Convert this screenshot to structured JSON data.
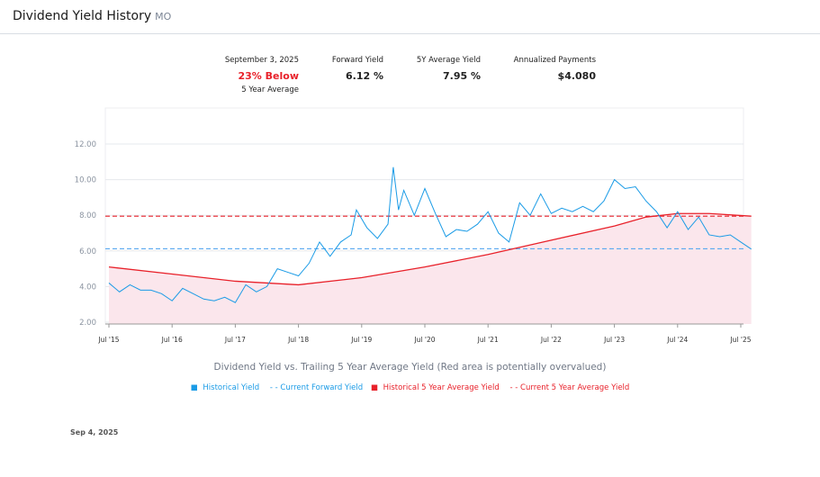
{
  "header": {
    "title": "Dividend Yield History",
    "ticker": "MO"
  },
  "stats": {
    "date": "September 3, 2025",
    "relative": "23% Below",
    "relative_sub": "5 Year Average",
    "forward_label": "Forward Yield",
    "forward_value": "6.12 %",
    "avg_label": "5Y Average Yield",
    "avg_value": "7.95 %",
    "payments_label": "Annualized Payments",
    "payments_value": "$4.080"
  },
  "footer_date": "Sep 4, 2025",
  "chart_data": {
    "type": "line",
    "title": "Dividend Yield vs. Trailing 5 Year Average Yield (Red area is potentially overvalued)",
    "ylim": [
      2,
      14
    ],
    "y_ticks": [
      "2.00",
      "4.00",
      "6.00",
      "8.00",
      "10.00",
      "12.00"
    ],
    "x_ticks": [
      "Jul '15",
      "Jul '16",
      "Jul '17",
      "Jul '18",
      "Jul '19",
      "Jul '20",
      "Jul '21",
      "Jul '22",
      "Jul '23",
      "Jul '24",
      "Jul '25"
    ],
    "grid": true,
    "legend_placement": "bottom",
    "colors": {
      "historical": "#1a9be6",
      "forward": "#5aa9f0",
      "avg": "#e8212a",
      "fill": "#fbe6ec"
    },
    "current_forward_yield": 6.12,
    "current_5y_average_yield": 7.95,
    "legend": [
      "Historical Yield",
      "- - Current Forward Yield",
      "Historical 5 Year Average Yield",
      "- - Current 5 Year Average Yield"
    ],
    "historical_yield": [
      [
        "2015-07",
        4.2
      ],
      [
        "2015-09",
        3.7
      ],
      [
        "2015-11",
        4.1
      ],
      [
        "2016-01",
        3.8
      ],
      [
        "2016-03",
        3.8
      ],
      [
        "2016-05",
        3.6
      ],
      [
        "2016-07",
        3.2
      ],
      [
        "2016-09",
        3.9
      ],
      [
        "2016-11",
        3.6
      ],
      [
        "2017-01",
        3.3
      ],
      [
        "2017-03",
        3.2
      ],
      [
        "2017-05",
        3.4
      ],
      [
        "2017-07",
        3.1
      ],
      [
        "2017-09",
        4.1
      ],
      [
        "2017-11",
        3.7
      ],
      [
        "2018-01",
        4.0
      ],
      [
        "2018-03",
        5.0
      ],
      [
        "2018-05",
        4.8
      ],
      [
        "2018-07",
        4.6
      ],
      [
        "2018-09",
        5.3
      ],
      [
        "2018-11",
        6.5
      ],
      [
        "2019-01",
        5.7
      ],
      [
        "2019-03",
        6.5
      ],
      [
        "2019-05",
        6.9
      ],
      [
        "2019-06",
        8.3
      ],
      [
        "2019-08",
        7.3
      ],
      [
        "2019-10",
        6.7
      ],
      [
        "2019-12",
        7.5
      ],
      [
        "2020-01",
        10.7
      ],
      [
        "2020-02",
        8.3
      ],
      [
        "2020-03",
        9.4
      ],
      [
        "2020-05",
        8.0
      ],
      [
        "2020-07",
        9.5
      ],
      [
        "2020-09",
        8.1
      ],
      [
        "2020-11",
        6.8
      ],
      [
        "2021-01",
        7.2
      ],
      [
        "2021-03",
        7.1
      ],
      [
        "2021-05",
        7.5
      ],
      [
        "2021-07",
        8.2
      ],
      [
        "2021-09",
        7.0
      ],
      [
        "2021-11",
        6.5
      ],
      [
        "2022-01",
        8.7
      ],
      [
        "2022-03",
        8.0
      ],
      [
        "2022-05",
        9.2
      ],
      [
        "2022-07",
        8.1
      ],
      [
        "2022-09",
        8.4
      ],
      [
        "2022-11",
        8.2
      ],
      [
        "2023-01",
        8.5
      ],
      [
        "2023-03",
        8.2
      ],
      [
        "2023-05",
        8.8
      ],
      [
        "2023-07",
        10.0
      ],
      [
        "2023-09",
        9.5
      ],
      [
        "2023-11",
        9.6
      ],
      [
        "2024-01",
        8.8
      ],
      [
        "2024-03",
        8.2
      ],
      [
        "2024-05",
        7.3
      ],
      [
        "2024-07",
        8.2
      ],
      [
        "2024-09",
        7.2
      ],
      [
        "2024-11",
        7.9
      ],
      [
        "2025-01",
        6.9
      ],
      [
        "2025-03",
        6.8
      ],
      [
        "2025-05",
        6.9
      ],
      [
        "2025-07",
        6.5
      ],
      [
        "2025-09",
        6.1
      ]
    ],
    "historical_5y_average": [
      [
        "2015-07",
        5.1
      ],
      [
        "2016-07",
        4.7
      ],
      [
        "2017-07",
        4.3
      ],
      [
        "2018-07",
        4.1
      ],
      [
        "2019-07",
        4.5
      ],
      [
        "2020-07",
        5.1
      ],
      [
        "2021-07",
        5.8
      ],
      [
        "2022-07",
        6.6
      ],
      [
        "2023-07",
        7.4
      ],
      [
        "2024-01",
        7.9
      ],
      [
        "2024-07",
        8.1
      ],
      [
        "2025-01",
        8.1
      ],
      [
        "2025-09",
        7.95
      ]
    ]
  }
}
